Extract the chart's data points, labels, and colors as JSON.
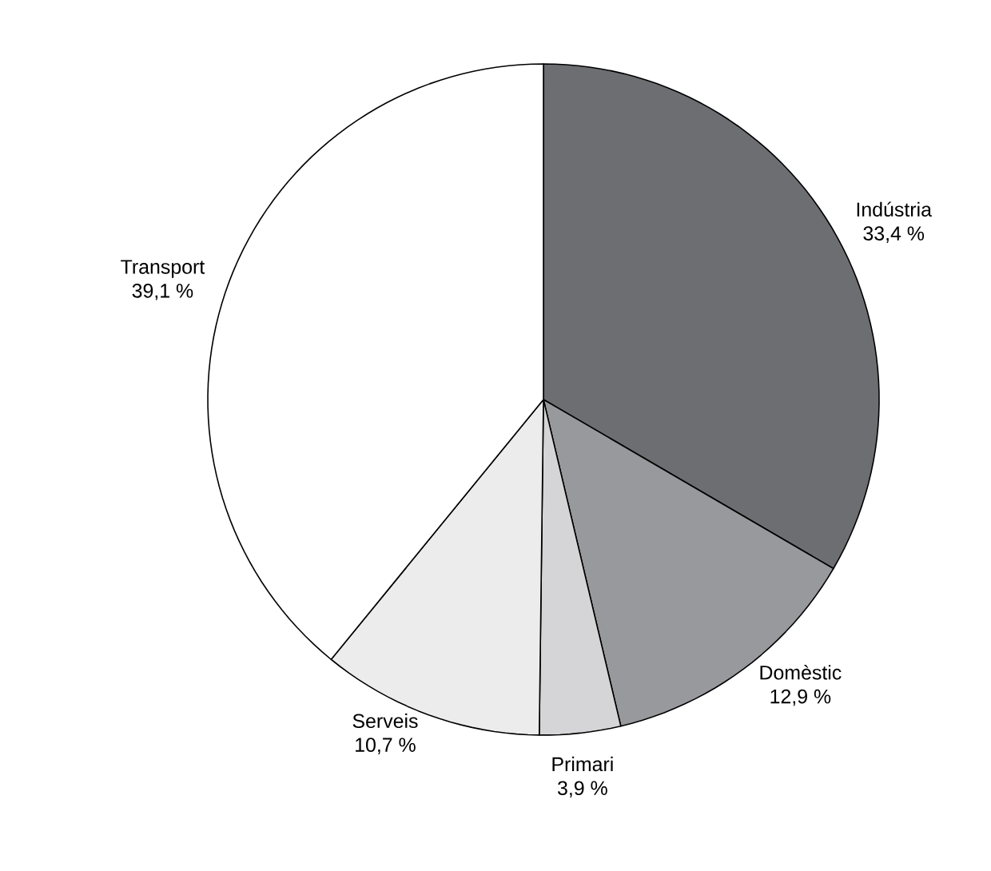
{
  "chart_data": {
    "type": "pie",
    "categories": [
      "Indústria",
      "Domèstic",
      "Primari",
      "Serveis",
      "Transport"
    ],
    "values": [
      33.4,
      12.9,
      3.9,
      10.7,
      39.1
    ],
    "value_labels": [
      "33,4 %",
      "12,9 %",
      "3,9 %",
      "10,7 %",
      "39,1 %"
    ],
    "colors": [
      "#6d6e71",
      "#98999c",
      "#d5d5d7",
      "#ececec",
      "#ffffff"
    ]
  }
}
